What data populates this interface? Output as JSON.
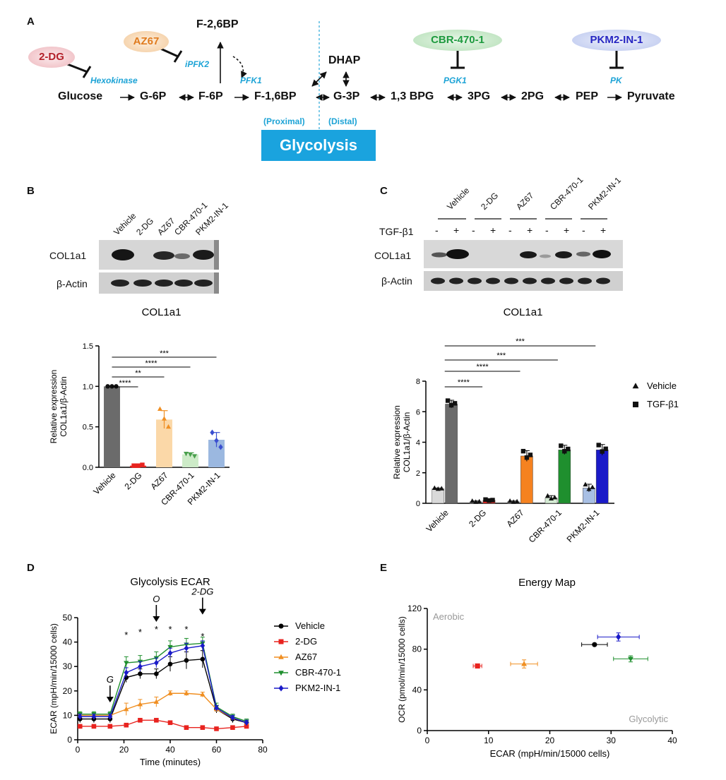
{
  "panels": {
    "a": "A",
    "b": "B",
    "c": "C",
    "d": "D",
    "e": "E"
  },
  "panel_a": {
    "pathway": [
      "Glucose",
      "G-6P",
      "F-6P",
      "F-1,6BP",
      "G-3P",
      "1,3 BPG",
      "3PG",
      "2PG",
      "PEP",
      "Pyruvate"
    ],
    "side_metabolites": {
      "f26bp": "F-2,6BP",
      "dhap": "DHAP"
    },
    "enzymes": {
      "hexokinase": "Hexokinase",
      "ipfk2": "iPFK2",
      "pfk1": "PFK1",
      "pgk1": "PGK1",
      "pk": "PK"
    },
    "inhibitors": [
      {
        "name": "2-DG",
        "color": "#b3202a",
        "fill": "#f6d9dc"
      },
      {
        "name": "AZ67",
        "color": "#e07b1e",
        "fill": "#fbe6cf"
      },
      {
        "name": "CBR-470-1",
        "color": "#1d9a3e",
        "fill": "#d7efd8"
      },
      {
        "name": "PKM2-IN-1",
        "color": "#2626c2",
        "fill": "#dbe1f6"
      }
    ],
    "proximal": "(Proximal)",
    "distal": "(Distal)",
    "glycolysis": "Glycolysis"
  },
  "panel_b": {
    "lanes": [
      "Vehicle",
      "2-DG",
      "AZ67",
      "CBR-470-1",
      "PKM2-IN-1"
    ],
    "blot_rows": [
      "COL1a1",
      "β-Actin"
    ]
  },
  "panel_c": {
    "lanes": [
      "Vehicle",
      "2-DG",
      "AZ67",
      "CBR-470-1",
      "PKM2-IN-1"
    ],
    "tgf_label": "TGF-β1",
    "signs": [
      "-",
      "+",
      "-",
      "+",
      "-",
      "+",
      "-",
      "+",
      "-",
      "+"
    ],
    "blot_rows": [
      "COL1a1",
      "β-Actin"
    ]
  },
  "chart_data": [
    {
      "id": "B",
      "type": "bar",
      "title": "COL1a1",
      "ylabel": "Relative expression COL1a1/β-Actin",
      "ylabel_lines": [
        "Relative expression",
        "COL1a1/β-Actin"
      ],
      "ylim": [
        0,
        1.5
      ],
      "yticks": [
        "0.0",
        "0.5",
        "1.0",
        "1.5"
      ],
      "categories": [
        "Vehicle",
        "2-DG",
        "AZ67",
        "CBR-470-1",
        "PKM2-IN-1"
      ],
      "values": [
        1.0,
        0.02,
        0.59,
        0.16,
        0.34
      ],
      "errors": [
        0.0,
        0.01,
        0.11,
        0.02,
        0.09
      ],
      "points": [
        [
          1.0,
          1.0,
          1.0
        ],
        [
          0.02,
          0.02,
          0.03
        ],
        [
          0.72,
          0.6,
          0.5
        ],
        [
          0.17,
          0.16,
          0.14
        ],
        [
          0.43,
          0.33,
          0.25
        ]
      ],
      "bar_colors": [
        "#6b6b6b",
        "#e8231f",
        "#fbd8a8",
        "#cdebc8",
        "#9bb8e0"
      ],
      "point_colors": [
        "#111111",
        "#e8231f",
        "#f08f22",
        "#4aa04d",
        "#3a4fd0"
      ],
      "significance": [
        {
          "from": 0,
          "to": 1,
          "label": "****"
        },
        {
          "from": 0,
          "to": 2,
          "label": "**"
        },
        {
          "from": 0,
          "to": 3,
          "label": "****"
        },
        {
          "from": 0,
          "to": 4,
          "label": "***"
        }
      ]
    },
    {
      "id": "C",
      "type": "bar",
      "title": "COL1a1",
      "ylabel": "Relative expression COL1a1/β-Actin",
      "ylabel_lines": [
        "Relative expression",
        "COL1a1/β-Actin"
      ],
      "ylim": [
        0,
        8
      ],
      "yticks": [
        "0",
        "2",
        "4",
        "6",
        "8"
      ],
      "categories": [
        "Vehicle",
        "2-DG",
        "AZ67",
        "CBR-470-1",
        "PKM2-IN-1"
      ],
      "series": [
        {
          "name": "Vehicle",
          "values": [
            0.95,
            0.1,
            0.1,
            0.35,
            1.0
          ],
          "errors": [
            0.05,
            0.05,
            0.05,
            0.15,
            0.25
          ],
          "colors": [
            "#d9d9d9",
            "#d9d9d9",
            "#d9d9d9",
            "#d5ecd4",
            "#a8bfe4"
          ]
        },
        {
          "name": "TGF-β1",
          "values": [
            6.5,
            0.2,
            3.1,
            3.5,
            3.5
          ],
          "errors": [
            0.25,
            0.05,
            0.35,
            0.3,
            0.35
          ],
          "colors": [
            "#6b6b6b",
            "#e8231f",
            "#f58220",
            "#1f8f2e",
            "#1a1ac8"
          ]
        }
      ],
      "significance": [
        {
          "from": 0,
          "to": 1,
          "label": "****"
        },
        {
          "from": 0,
          "to": 2,
          "label": "****"
        },
        {
          "from": 0,
          "to": 3,
          "label": "***"
        },
        {
          "from": 0,
          "to": 4,
          "label": "***"
        }
      ],
      "legend": {
        "position": "right",
        "items": [
          "Vehicle",
          "TGF-β1"
        ]
      }
    },
    {
      "id": "D",
      "type": "line",
      "title": "Glycolysis ECAR",
      "xlabel": "Time (minutes)",
      "ylabel": "ECAR (mpH/min/15000 cells)",
      "xlim": [
        0,
        80
      ],
      "ylim": [
        0,
        50
      ],
      "xticks": [
        "0",
        "20",
        "40",
        "60",
        "80"
      ],
      "yticks": [
        "0",
        "10",
        "20",
        "30",
        "40",
        "50"
      ],
      "x": [
        1,
        7,
        14,
        21,
        27,
        34,
        40,
        47,
        54,
        60,
        67,
        73
      ],
      "series": [
        {
          "name": "Vehicle",
          "color": "#000000",
          "marker": "circle",
          "values": [
            8.5,
            8.5,
            8.5,
            25.5,
            27,
            27,
            31,
            32.5,
            33,
            12.5,
            8.5,
            7
          ],
          "errors": [
            1.5,
            1.5,
            1.5,
            2,
            2,
            2,
            3,
            3.5,
            3.5,
            1.5,
            1.5,
            1
          ]
        },
        {
          "name": "2-DG",
          "color": "#e8231f",
          "marker": "square",
          "values": [
            5.5,
            5.5,
            5.5,
            6,
            8,
            8,
            7,
            5,
            5,
            4.5,
            5,
            5.5
          ],
          "errors": [
            0.5,
            0.5,
            0.5,
            0.5,
            0.5,
            0.5,
            0.5,
            0.5,
            0.5,
            0.5,
            0.5,
            0.5
          ]
        },
        {
          "name": "AZ67",
          "color": "#f08f22",
          "marker": "triangle",
          "values": [
            10,
            10,
            10,
            12.5,
            14.5,
            15.5,
            19,
            19,
            18.5,
            12.5,
            9,
            7
          ],
          "errors": [
            1,
            1,
            1,
            2.5,
            2,
            2,
            1,
            1,
            1,
            1,
            1,
            1
          ]
        },
        {
          "name": "CBR-470-1",
          "color": "#1f8f2e",
          "marker": "triangle-down",
          "values": [
            10.5,
            10.5,
            10.5,
            31.5,
            32,
            33.5,
            38,
            39,
            39.5,
            13.5,
            9.5,
            7.5
          ],
          "errors": [
            1,
            1,
            1,
            2.5,
            2.5,
            2.5,
            2.5,
            2.5,
            2.5,
            1.5,
            1,
            1
          ]
        },
        {
          "name": "PKM2-IN-1",
          "color": "#1a1ac8",
          "marker": "diamond",
          "values": [
            9.5,
            9.5,
            9.5,
            27.5,
            30,
            31.5,
            35.5,
            37.5,
            38.5,
            13,
            9,
            7
          ],
          "errors": [
            1,
            1,
            1,
            2,
            2,
            2,
            2,
            2,
            2,
            1,
            1,
            1
          ]
        }
      ],
      "asterisk_x": [
        21,
        27,
        34,
        40,
        47,
        54
      ],
      "asterisk_label": "*",
      "injections": [
        {
          "label": "G",
          "x": 14
        },
        {
          "label": "O",
          "x": 34
        },
        {
          "label": "2-DG",
          "x": 54
        }
      ],
      "legend": {
        "position": "right",
        "items": [
          "Vehicle",
          "2-DG",
          "AZ67",
          "CBR-470-1",
          "PKM2-IN-1"
        ]
      }
    },
    {
      "id": "E",
      "type": "scatter",
      "title": "Energy Map",
      "xlabel": "ECAR (mpH/min/15000 cells)",
      "ylabel": "OCR (pmol/min/15000 cells)",
      "xlim": [
        0,
        40
      ],
      "ylim": [
        0,
        120
      ],
      "xticks": [
        "0",
        "10",
        "20",
        "30",
        "40"
      ],
      "yticks": [
        "0",
        "40",
        "80",
        "120"
      ],
      "corner_labels": {
        "top_left": "Aerobic",
        "bottom_right": "Glycolytic"
      },
      "points": [
        {
          "name": "Vehicle",
          "color": "#000000",
          "marker": "circle",
          "x": 27.3,
          "y": 84.5,
          "xerr": 2.1,
          "yerr": 0
        },
        {
          "name": "2-DG",
          "color": "#e8231f",
          "marker": "square",
          "x": 8.2,
          "y": 63.5,
          "xerr": 0.7,
          "yerr": 1.5
        },
        {
          "name": "AZ67",
          "color": "#f08f22",
          "marker": "triangle",
          "x": 15.8,
          "y": 65.5,
          "xerr": 2.2,
          "yerr": 4
        },
        {
          "name": "CBR-470-1",
          "color": "#1f8f2e",
          "marker": "triangle-down",
          "x": 33.2,
          "y": 70.5,
          "xerr": 2.8,
          "yerr": 3
        },
        {
          "name": "PKM2-IN-1",
          "color": "#1a1ac8",
          "marker": "diamond",
          "x": 31.2,
          "y": 92,
          "xerr": 3.4,
          "yerr": 4
        }
      ]
    }
  ]
}
